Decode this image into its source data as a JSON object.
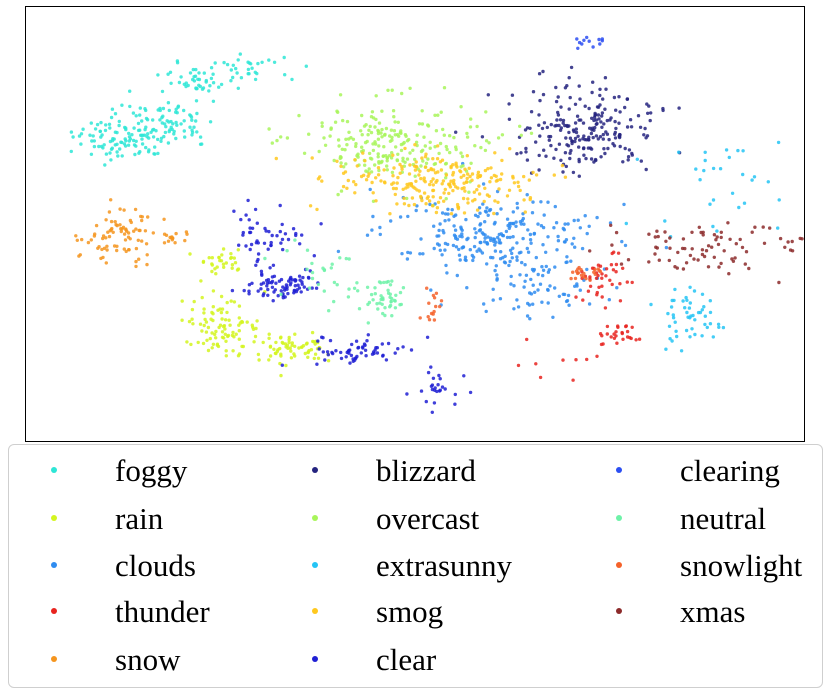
{
  "chart_data": {
    "type": "scatter",
    "title": "",
    "xlabel": "",
    "ylabel": "",
    "axes_ticks": false,
    "grid": false,
    "legend_position": "bottom",
    "legend_columns": 3,
    "series": [
      {
        "name": "foggy",
        "color": "#2ee6d6",
        "clusters": [
          {
            "cx": 0.12,
            "cy": 0.3,
            "sx": 0.03,
            "sy": 0.025,
            "n": 90
          },
          {
            "cx": 0.18,
            "cy": 0.27,
            "sx": 0.03,
            "sy": 0.03,
            "n": 80
          },
          {
            "cx": 0.22,
            "cy": 0.17,
            "sx": 0.025,
            "sy": 0.02,
            "n": 50
          },
          {
            "cx": 0.29,
            "cy": 0.14,
            "sx": 0.025,
            "sy": 0.015,
            "n": 25
          }
        ]
      },
      {
        "name": "rain",
        "color": "#d4f51f",
        "clusters": [
          {
            "cx": 0.25,
            "cy": 0.73,
            "sx": 0.025,
            "sy": 0.03,
            "n": 90
          },
          {
            "cx": 0.34,
            "cy": 0.78,
            "sx": 0.03,
            "sy": 0.02,
            "n": 70
          },
          {
            "cx": 0.25,
            "cy": 0.58,
            "sx": 0.015,
            "sy": 0.015,
            "n": 30
          }
        ]
      },
      {
        "name": "clouds",
        "color": "#2f8cf0",
        "clusters": [
          {
            "cx": 0.6,
            "cy": 0.52,
            "sx": 0.07,
            "sy": 0.04,
            "n": 230
          },
          {
            "cx": 0.65,
            "cy": 0.64,
            "sx": 0.045,
            "sy": 0.04,
            "n": 80
          }
        ]
      },
      {
        "name": "thunder",
        "color": "#e8231e",
        "clusters": [
          {
            "cx": 0.73,
            "cy": 0.62,
            "sx": 0.02,
            "sy": 0.03,
            "n": 40
          },
          {
            "cx": 0.76,
            "cy": 0.75,
            "sx": 0.012,
            "sy": 0.012,
            "n": 25
          },
          {
            "cx": 0.68,
            "cy": 0.8,
            "sx": 0.03,
            "sy": 0.04,
            "n": 10
          }
        ]
      },
      {
        "name": "snow",
        "color": "#f5951e",
        "clusters": [
          {
            "cx": 0.12,
            "cy": 0.52,
            "sx": 0.025,
            "sy": 0.035,
            "n": 80
          },
          {
            "cx": 0.19,
            "cy": 0.53,
            "sx": 0.012,
            "sy": 0.01,
            "n": 15
          }
        ]
      },
      {
        "name": "blizzard",
        "color": "#24237f",
        "clusters": [
          {
            "cx": 0.72,
            "cy": 0.28,
            "sx": 0.045,
            "sy": 0.045,
            "n": 220
          }
        ]
      },
      {
        "name": "overcast",
        "color": "#a8f55a",
        "clusters": [
          {
            "cx": 0.47,
            "cy": 0.31,
            "sx": 0.06,
            "sy": 0.05,
            "n": 230
          }
        ]
      },
      {
        "name": "extrasunny",
        "color": "#24c4f5",
        "clusters": [
          {
            "cx": 0.85,
            "cy": 0.71,
            "sx": 0.02,
            "sy": 0.03,
            "n": 50
          },
          {
            "cx": 0.89,
            "cy": 0.42,
            "sx": 0.04,
            "sy": 0.06,
            "n": 30
          }
        ]
      },
      {
        "name": "smog",
        "color": "#ffc81e",
        "clusters": [
          {
            "cx": 0.52,
            "cy": 0.4,
            "sx": 0.06,
            "sy": 0.035,
            "n": 230
          }
        ]
      },
      {
        "name": "clear",
        "color": "#1f1fd4",
        "clusters": [
          {
            "cx": 0.33,
            "cy": 0.64,
            "sx": 0.025,
            "sy": 0.02,
            "n": 80
          },
          {
            "cx": 0.43,
            "cy": 0.79,
            "sx": 0.03,
            "sy": 0.015,
            "n": 60
          },
          {
            "cx": 0.31,
            "cy": 0.53,
            "sx": 0.025,
            "sy": 0.04,
            "n": 50
          },
          {
            "cx": 0.53,
            "cy": 0.88,
            "sx": 0.018,
            "sy": 0.02,
            "n": 25
          }
        ]
      },
      {
        "name": "clearing",
        "color": "#2b4ef2",
        "clusters": [
          {
            "cx": 0.72,
            "cy": 0.08,
            "sx": 0.012,
            "sy": 0.008,
            "n": 12
          }
        ]
      },
      {
        "name": "neutral",
        "color": "#6ef2a8",
        "clusters": [
          {
            "cx": 0.46,
            "cy": 0.67,
            "sx": 0.015,
            "sy": 0.025,
            "n": 40
          },
          {
            "cx": 0.39,
            "cy": 0.63,
            "sx": 0.03,
            "sy": 0.04,
            "n": 35
          }
        ]
      },
      {
        "name": "snowlight",
        "color": "#f5622a",
        "clusters": [
          {
            "cx": 0.52,
            "cy": 0.69,
            "sx": 0.006,
            "sy": 0.015,
            "n": 15
          },
          {
            "cx": 0.72,
            "cy": 0.61,
            "sx": 0.012,
            "sy": 0.01,
            "n": 20
          }
        ]
      },
      {
        "name": "xmas",
        "color": "#8c2a2a",
        "clusters": [
          {
            "cx": 0.87,
            "cy": 0.55,
            "sx": 0.06,
            "sy": 0.03,
            "n": 80
          }
        ]
      }
    ]
  }
}
